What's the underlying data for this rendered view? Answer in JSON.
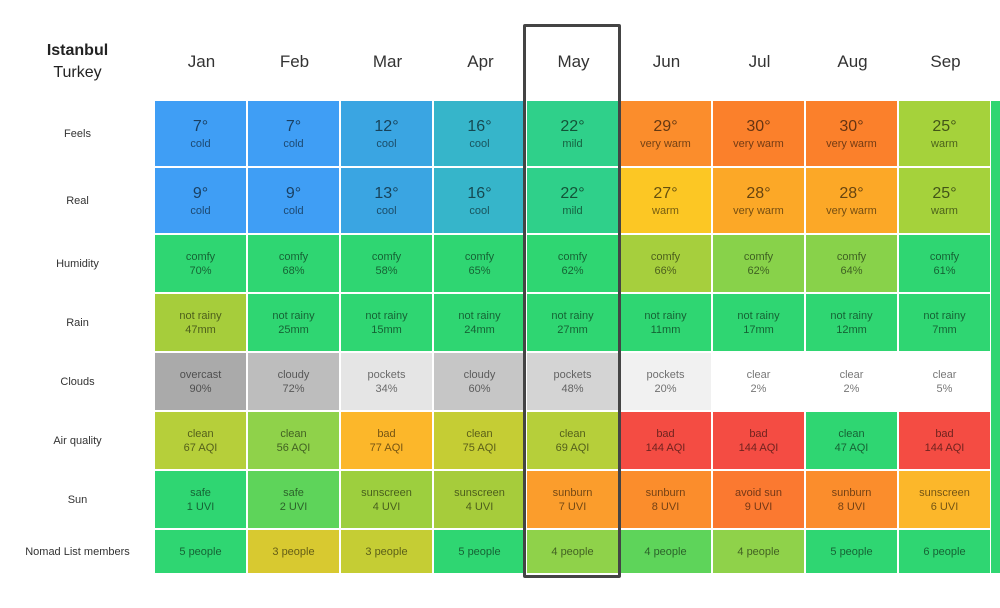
{
  "header": {
    "city": "Istanbul",
    "country": "Turkey"
  },
  "months": [
    "Jan",
    "Feb",
    "Mar",
    "Apr",
    "May",
    "Jun",
    "Jul",
    "Aug",
    "Sep"
  ],
  "rows": [
    {
      "label": "Feels",
      "cells": [
        {
          "top": "7°",
          "bottom": "cold",
          "color": "#3f9ef5"
        },
        {
          "top": "7°",
          "bottom": "cold",
          "color": "#3f9ef5"
        },
        {
          "top": "12°",
          "bottom": "cool",
          "color": "#3aa5e2"
        },
        {
          "top": "16°",
          "bottom": "cool",
          "color": "#36b5ca"
        },
        {
          "top": "22°",
          "bottom": "mild",
          "color": "#2fd08a"
        },
        {
          "top": "29°",
          "bottom": "very warm",
          "color": "#fb8d2c"
        },
        {
          "top": "30°",
          "bottom": "very warm",
          "color": "#fb802b"
        },
        {
          "top": "30°",
          "bottom": "very warm",
          "color": "#fb802b"
        },
        {
          "top": "25°",
          "bottom": "warm",
          "color": "#a5d23b"
        }
      ]
    },
    {
      "label": "Real",
      "cells": [
        {
          "top": "9°",
          "bottom": "cold",
          "color": "#3f9ef5"
        },
        {
          "top": "9°",
          "bottom": "cold",
          "color": "#3f9ef5"
        },
        {
          "top": "13°",
          "bottom": "cool",
          "color": "#3aa5e2"
        },
        {
          "top": "16°",
          "bottom": "cool",
          "color": "#36b5ca"
        },
        {
          "top": "22°",
          "bottom": "mild",
          "color": "#2fd08a"
        },
        {
          "top": "27°",
          "bottom": "warm",
          "color": "#fcc724"
        },
        {
          "top": "28°",
          "bottom": "very warm",
          "color": "#fca827"
        },
        {
          "top": "28°",
          "bottom": "very warm",
          "color": "#fca827"
        },
        {
          "top": "25°",
          "bottom": "warm",
          "color": "#a5d23b"
        }
      ]
    },
    {
      "label": "Humidity",
      "cells": [
        {
          "top": "comfy",
          "bottom": "70%",
          "color": "#2fd672"
        },
        {
          "top": "comfy",
          "bottom": "68%",
          "color": "#2fd672"
        },
        {
          "top": "comfy",
          "bottom": "58%",
          "color": "#2fd672"
        },
        {
          "top": "comfy",
          "bottom": "65%",
          "color": "#2fd672"
        },
        {
          "top": "comfy",
          "bottom": "62%",
          "color": "#2fd672"
        },
        {
          "top": "comfy",
          "bottom": "66%",
          "color": "#a6cf3d"
        },
        {
          "top": "comfy",
          "bottom": "62%",
          "color": "#88d24a"
        },
        {
          "top": "comfy",
          "bottom": "64%",
          "color": "#88d24a"
        },
        {
          "top": "comfy",
          "bottom": "61%",
          "color": "#2fd672"
        }
      ]
    },
    {
      "label": "Rain",
      "cells": [
        {
          "top": "not rainy",
          "bottom": "47mm",
          "color": "#a6cd3b"
        },
        {
          "top": "not rainy",
          "bottom": "25mm",
          "color": "#2fd672"
        },
        {
          "top": "not rainy",
          "bottom": "15mm",
          "color": "#2fd672"
        },
        {
          "top": "not rainy",
          "bottom": "24mm",
          "color": "#2fd672"
        },
        {
          "top": "not rainy",
          "bottom": "27mm",
          "color": "#2fd672"
        },
        {
          "top": "not rainy",
          "bottom": "11mm",
          "color": "#2fd672"
        },
        {
          "top": "not rainy",
          "bottom": "17mm",
          "color": "#2fd672"
        },
        {
          "top": "not rainy",
          "bottom": "12mm",
          "color": "#2fd672"
        },
        {
          "top": "not rainy",
          "bottom": "7mm",
          "color": "#2fd672"
        }
      ]
    },
    {
      "label": "Clouds",
      "cells": [
        {
          "top": "overcast",
          "bottom": "90%",
          "color": "#aaaaaa"
        },
        {
          "top": "cloudy",
          "bottom": "72%",
          "color": "#bdbdbd"
        },
        {
          "top": "pockets",
          "bottom": "34%",
          "color": "#e5e5e5"
        },
        {
          "top": "cloudy",
          "bottom": "60%",
          "color": "#c6c6c6"
        },
        {
          "top": "pockets",
          "bottom": "48%",
          "color": "#d4d4d4"
        },
        {
          "top": "pockets",
          "bottom": "20%",
          "color": "#f1f1f1"
        },
        {
          "top": "clear",
          "bottom": "2%",
          "color": "#ffffff"
        },
        {
          "top": "clear",
          "bottom": "2%",
          "color": "#ffffff"
        },
        {
          "top": "clear",
          "bottom": "5%",
          "color": "#ffffff"
        }
      ]
    },
    {
      "label": "Air quality",
      "cells": [
        {
          "top": "clean",
          "bottom": "67 AQI",
          "color": "#b6cf3a"
        },
        {
          "top": "clean",
          "bottom": "56 AQI",
          "color": "#8fd24a"
        },
        {
          "top": "bad",
          "bottom": "77 AQI",
          "color": "#fcb72a"
        },
        {
          "top": "clean",
          "bottom": "75 AQI",
          "color": "#c5cd34"
        },
        {
          "top": "clean",
          "bottom": "69 AQI",
          "color": "#b6cf3a"
        },
        {
          "top": "bad",
          "bottom": "144 AQI",
          "color": "#f44c43"
        },
        {
          "top": "bad",
          "bottom": "144 AQI",
          "color": "#f44c43"
        },
        {
          "top": "clean",
          "bottom": "47 AQI",
          "color": "#2fd672"
        },
        {
          "top": "bad",
          "bottom": "144 AQI",
          "color": "#f44c43"
        }
      ]
    },
    {
      "label": "Sun",
      "cells": [
        {
          "top": "safe",
          "bottom": "1 UVI",
          "color": "#2fd672"
        },
        {
          "top": "safe",
          "bottom": "2 UVI",
          "color": "#5ed45a"
        },
        {
          "top": "sunscreen",
          "bottom": "4 UVI",
          "color": "#9dcf3e"
        },
        {
          "top": "sunscreen",
          "bottom": "4 UVI",
          "color": "#a6cc3b"
        },
        {
          "top": "sunburn",
          "bottom": "7 UVI",
          "color": "#fb9d2c"
        },
        {
          "top": "sunburn",
          "bottom": "8 UVI",
          "color": "#fb8d2c"
        },
        {
          "top": "avoid sun",
          "bottom": "9 UVI",
          "color": "#fb7930"
        },
        {
          "top": "sunburn",
          "bottom": "8 UVI",
          "color": "#fb8d2c"
        },
        {
          "top": "sunscreen",
          "bottom": "6 UVI",
          "color": "#fcb72a"
        }
      ]
    },
    {
      "label": "Nomad List members",
      "cells": [
        {
          "top": "5 people",
          "color": "#2fd672"
        },
        {
          "top": "3 people",
          "color": "#d8c930"
        },
        {
          "top": "3 people",
          "color": "#c5cd34"
        },
        {
          "top": "5 people",
          "color": "#2fd672"
        },
        {
          "top": "4 people",
          "color": "#8fd24a"
        },
        {
          "top": "4 people",
          "color": "#5ed45a"
        },
        {
          "top": "4 people",
          "color": "#8fd24a"
        },
        {
          "top": "5 people",
          "color": "#2fd672"
        },
        {
          "top": "6 people",
          "color": "#2fd672"
        }
      ]
    }
  ]
}
